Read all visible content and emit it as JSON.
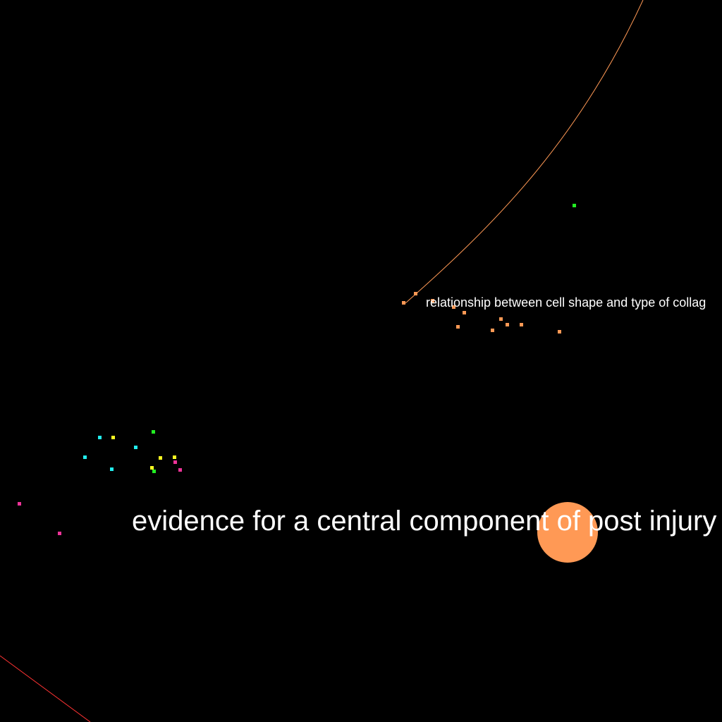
{
  "labels": {
    "collagen": "relationship between cell shape and type of collag",
    "injury": "evidence for a central component of post injury"
  },
  "colors": {
    "background": "#000000",
    "orange": "#ff9955",
    "orange_edge": "#ff9955",
    "red_edge": "#ff3333",
    "green": "#22ee22",
    "cyan": "#22eeee",
    "yellow": "#ffff22",
    "magenta": "#ee3399",
    "label": "#ffffff"
  }
}
